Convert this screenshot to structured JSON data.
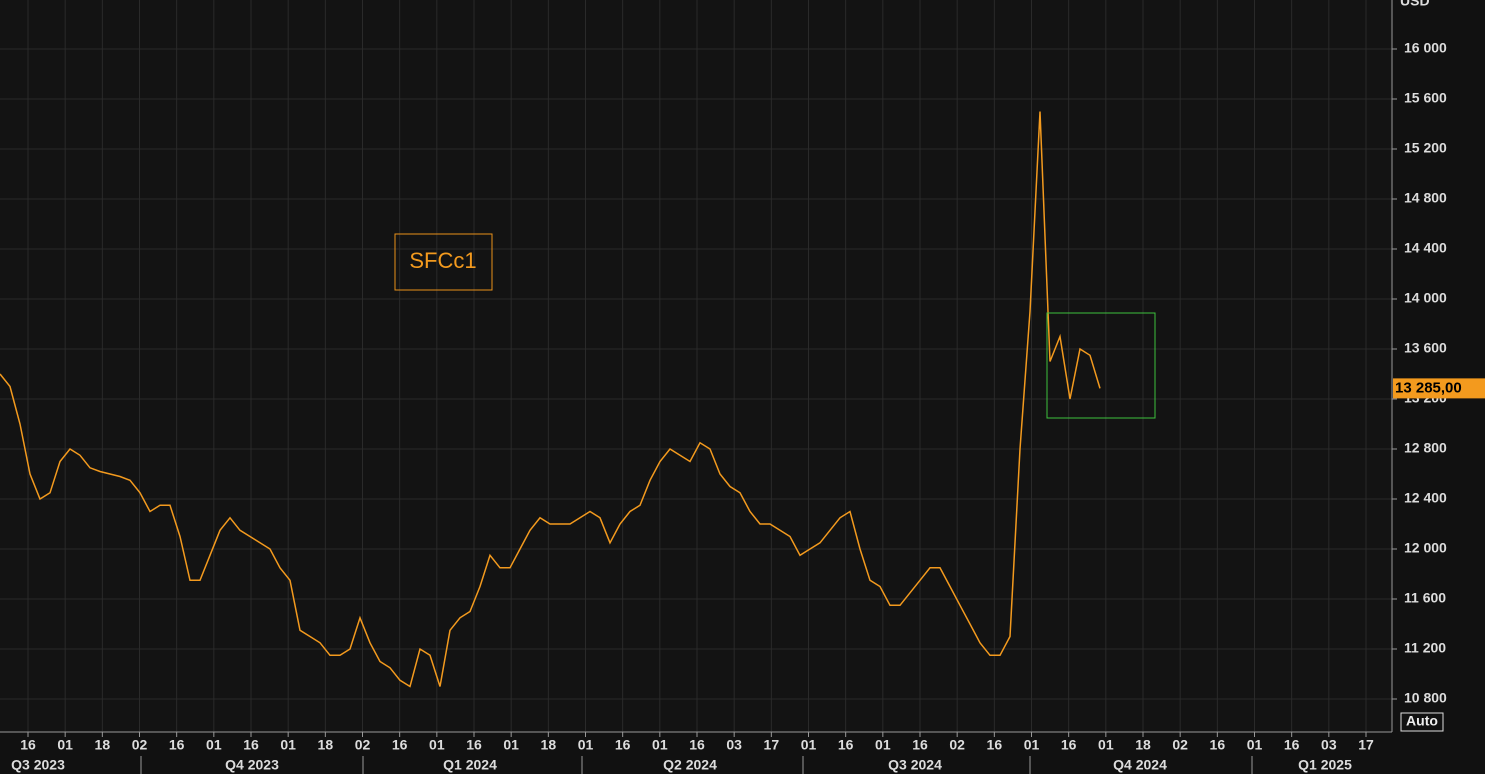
{
  "chart_data": {
    "type": "line",
    "title": "SFCc1",
    "unit": "USD",
    "mode_button": "Auto",
    "series": [
      {
        "name": "SFCc1",
        "color": "#f39a1e",
        "values": [
          13400,
          13300,
          13000,
          12600,
          12400,
          12450,
          12700,
          12800,
          12750,
          12650,
          12620,
          12600,
          12580,
          12550,
          12450,
          12300,
          12350,
          12350,
          12100,
          11750,
          11750,
          11950,
          12150,
          12250,
          12150,
          12100,
          12050,
          12000,
          11850,
          11750,
          11350,
          11300,
          11250,
          11150,
          11150,
          11200,
          11450,
          11250,
          11100,
          11050,
          10950,
          10900,
          11200,
          11150,
          10900,
          11350,
          11450,
          11500,
          11700,
          11950,
          11850,
          11850,
          12000,
          12150,
          12250,
          12200,
          12200,
          12200,
          12250,
          12300,
          12250,
          12050,
          12200,
          12300,
          12350,
          12550,
          12700,
          12800,
          12750,
          12700,
          12850,
          12800,
          12600,
          12500,
          12450,
          12300,
          12200,
          12200,
          12150,
          12100,
          11950,
          12000,
          12050,
          12150,
          12250,
          12300,
          12000,
          11750,
          11700,
          11550,
          11550,
          11650,
          11750,
          11850,
          11850,
          11700,
          11550,
          11400,
          11250,
          11150,
          11150,
          11300,
          12800,
          13900,
          15500,
          13500,
          13700,
          13200,
          13600,
          13550,
          13285
        ]
      }
    ],
    "last_price": {
      "value": 13285,
      "label": "13 285,00"
    },
    "ylim": [
      10536,
      16392
    ],
    "yticks": [
      {
        "value": 10800,
        "label": "10 800"
      },
      {
        "value": 11200,
        "label": "11 200"
      },
      {
        "value": 11600,
        "label": "11 600"
      },
      {
        "value": 12000,
        "label": "12 000"
      },
      {
        "value": 12400,
        "label": "12 400"
      },
      {
        "value": 12800,
        "label": "12 800"
      },
      {
        "value": 13200,
        "label": "13 200"
      },
      {
        "value": 13600,
        "label": "13 600"
      },
      {
        "value": 14000,
        "label": "14 000"
      },
      {
        "value": 14400,
        "label": "14 400"
      },
      {
        "value": 14800,
        "label": "14 800"
      },
      {
        "value": 15200,
        "label": "15 200"
      },
      {
        "value": 15600,
        "label": "15 600"
      },
      {
        "value": 16000,
        "label": "16 000"
      }
    ],
    "xtick_labels": [
      "16",
      "01",
      "18",
      "02",
      "16",
      "01",
      "16",
      "01",
      "18",
      "02",
      "16",
      "01",
      "16",
      "01",
      "18",
      "01",
      "16",
      "01",
      "16",
      "03",
      "17",
      "01",
      "16",
      "01",
      "16",
      "02",
      "16",
      "01",
      "16",
      "01",
      "18",
      "02",
      "16",
      "01",
      "16",
      "03",
      "17"
    ],
    "quarters": [
      "Q3 2023",
      "Q4 2023",
      "Q1 2024",
      "Q2 2024",
      "Q3 2024",
      "Q4 2024",
      "Q1 2025"
    ],
    "grid": true
  }
}
